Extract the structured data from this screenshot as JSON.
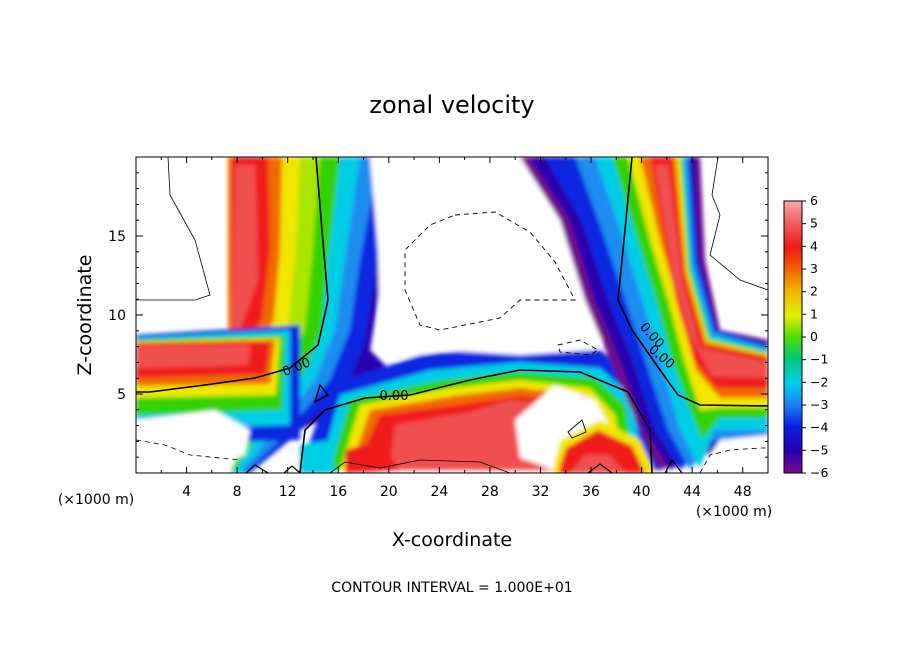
{
  "chart_data": {
    "type": "heatmap",
    "title": "zonal velocity",
    "xlabel": "X-coordinate",
    "ylabel": "Z-coordinate",
    "x_unit_left": "(×1000 m)",
    "x_unit_right": "(×1000 m)",
    "xlim": [
      0,
      50
    ],
    "ylim": [
      0,
      20
    ],
    "x_ticks": [
      4,
      8,
      12,
      16,
      20,
      24,
      28,
      32,
      36,
      40,
      44,
      48
    ],
    "y_ticks": [
      5,
      10,
      15
    ],
    "colorbar": {
      "min": -6,
      "max": 6,
      "ticks": [
        6,
        5,
        4,
        3,
        2,
        1,
        0,
        -1,
        -2,
        -3,
        -4,
        -5,
        -6
      ]
    },
    "contour_labels": [
      "0.00",
      "0.00",
      "0.00",
      "0.00"
    ],
    "footer": "CONTOUR INTERVAL = 1.000E+01",
    "field_approx": {
      "description_units": "velocity",
      "features": [
        {
          "x": 11,
          "z": 15,
          "value": 5.5
        },
        {
          "x": 9,
          "z": 7,
          "value": 5
        },
        {
          "x": 1,
          "z": 7,
          "value": 5
        },
        {
          "x": 20,
          "z": 6,
          "value": -5
        },
        {
          "x": 34,
          "z": 17,
          "value": -5
        },
        {
          "x": 39,
          "z": 6,
          "value": -4
        },
        {
          "x": 42,
          "z": 14,
          "value": 5
        },
        {
          "x": 48,
          "z": 7,
          "value": 5
        },
        {
          "x": 30,
          "z": 3.5,
          "value": 5.5
        },
        {
          "x": 38,
          "z": 2,
          "value": 5.5
        },
        {
          "x": 22,
          "z": 4,
          "value": 5
        }
      ]
    }
  },
  "colors": {
    "scale": [
      "#7a0a8a",
      "#2a00a8",
      "#0010d8",
      "#1a4cf0",
      "#1e90f0",
      "#00c8e6",
      "#00c878",
      "#32dc00",
      "#a0e600",
      "#f0f000",
      "#f0b400",
      "#f06400",
      "#f01e1e",
      "#f05050",
      "#f08080",
      "#f8a8a8"
    ]
  }
}
